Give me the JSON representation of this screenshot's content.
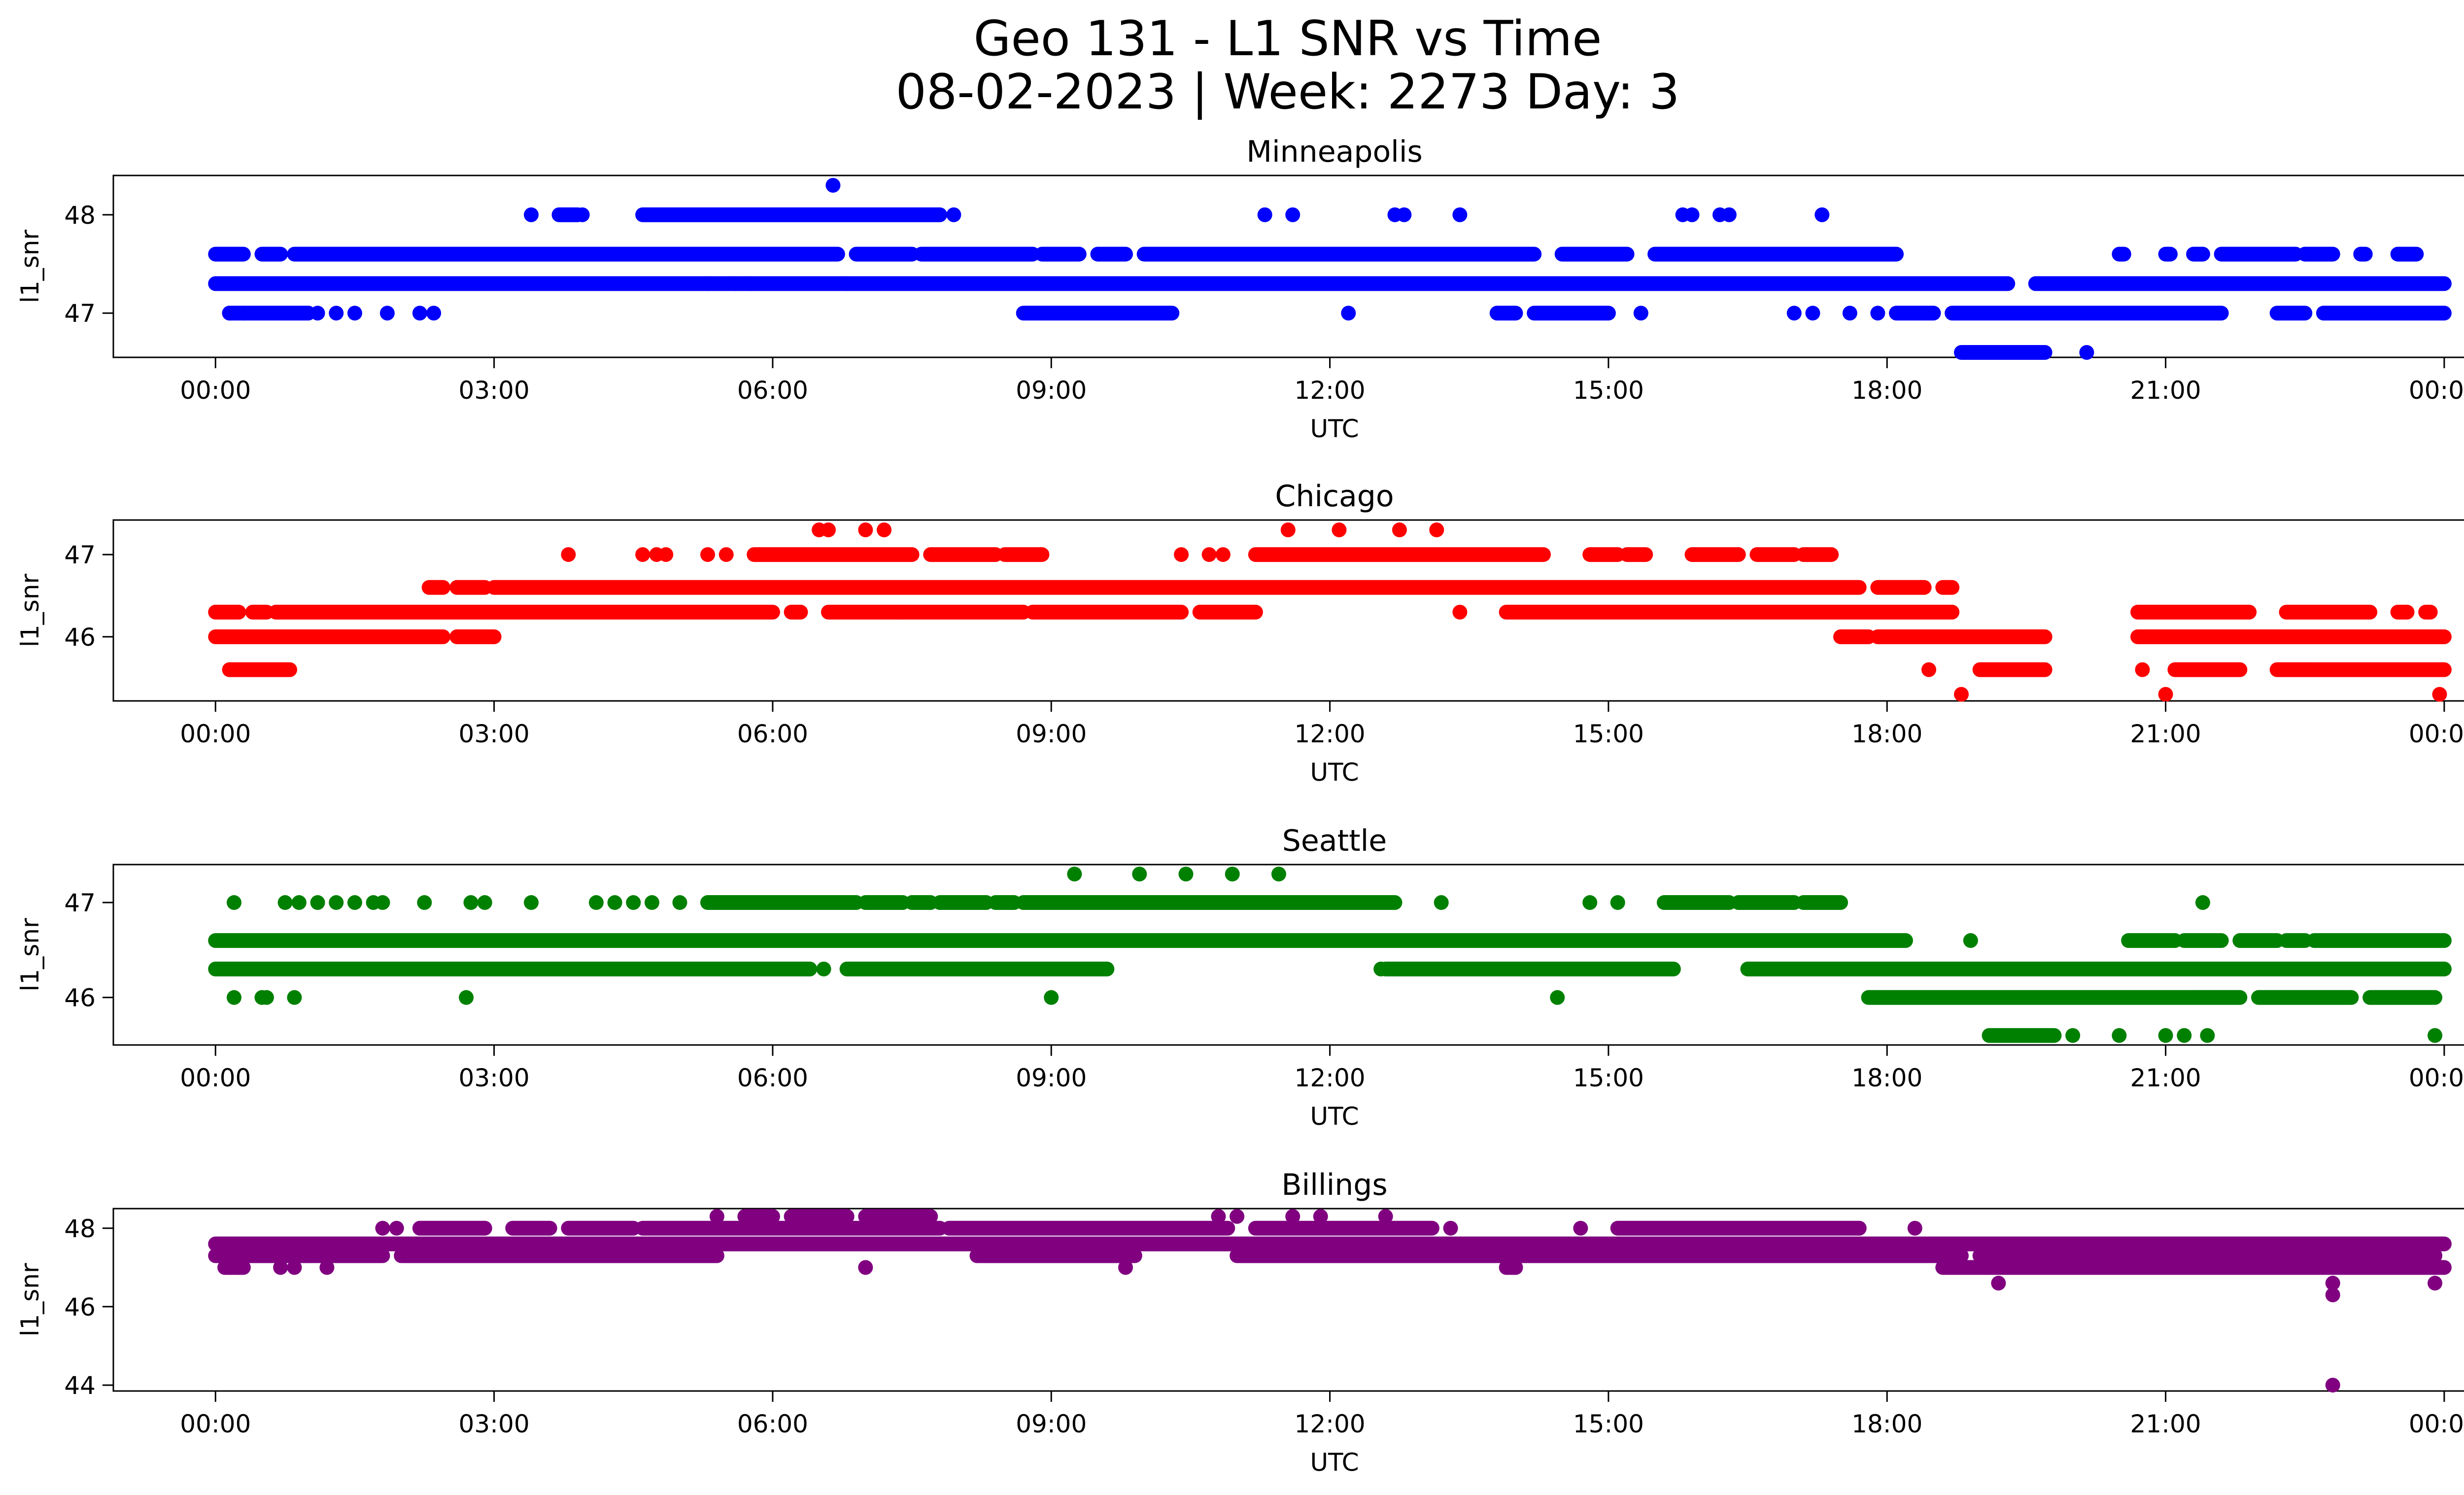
{
  "figure": {
    "title_line1": "Geo 131 - L1 SNR vs Time",
    "title_line2": "08-02-2023 | Week: 2273 Day: 3"
  },
  "chart_data": [
    {
      "type": "scatter",
      "title": "Minneapolis",
      "xlabel": "UTC",
      "ylabel": "l1_snr",
      "color": "#0000ff",
      "x_ticks": [
        "00:00",
        "03:00",
        "06:00",
        "09:00",
        "12:00",
        "15:00",
        "18:00",
        "21:00",
        "00:00"
      ],
      "xlim_hours": [
        -1.1,
        25.2
      ],
      "y_ticks": [
        47,
        48
      ],
      "ylim": [
        46.55,
        48.4
      ],
      "bands": [
        {
          "y": 47.3,
          "ranges": [
            [
              0,
              19.3
            ],
            [
              19.6,
              24
            ]
          ]
        },
        {
          "y": 47.6,
          "ranges": [
            [
              0,
              0.3
            ],
            [
              0.5,
              0.7
            ],
            [
              0.85,
              6.7
            ],
            [
              6.9,
              7.5
            ],
            [
              7.6,
              8.8
            ],
            [
              8.9,
              9.3
            ],
            [
              9.5,
              9.8
            ],
            [
              10.0,
              14.2
            ],
            [
              14.5,
              15.2
            ],
            [
              15.5,
              18.1
            ],
            [
              20.5,
              20.55
            ],
            [
              21.0,
              21.05
            ],
            [
              21.3,
              21.4
            ],
            [
              21.6,
              22.4
            ],
            [
              22.5,
              22.8
            ],
            [
              23.1,
              23.15
            ],
            [
              23.5,
              23.7
            ]
          ]
        },
        {
          "y": 47.0,
          "ranges": [
            [
              0.15,
              1.0
            ],
            [
              8.7,
              10.3
            ],
            [
              13.8,
              14.0
            ],
            [
              14.2,
              15.0
            ],
            [
              18.1,
              18.5
            ],
            [
              18.7,
              21.6
            ],
            [
              22.2,
              22.5
            ],
            [
              22.7,
              24
            ]
          ]
        },
        {
          "y": 48.0,
          "ranges": [
            [
              4.6,
              7.8
            ],
            [
              3.7,
              3.9
            ]
          ]
        },
        {
          "y": 46.6,
          "ranges": [
            [
              18.8,
              19.7
            ]
          ]
        }
      ],
      "points": [
        {
          "x": 0.15,
          "y": 47.0
        },
        {
          "x": 0.3,
          "y": 47.0
        },
        {
          "x": 1.1,
          "y": 47.0
        },
        {
          "x": 1.3,
          "y": 47.0
        },
        {
          "x": 1.5,
          "y": 47.0
        },
        {
          "x": 1.85,
          "y": 47.0
        },
        {
          "x": 2.2,
          "y": 47.0
        },
        {
          "x": 2.35,
          "y": 47.0
        },
        {
          "x": 3.4,
          "y": 48.0
        },
        {
          "x": 3.95,
          "y": 48.0
        },
        {
          "x": 7.95,
          "y": 48.0
        },
        {
          "x": 11.3,
          "y": 48.0
        },
        {
          "x": 11.6,
          "y": 48.0
        },
        {
          "x": 12.7,
          "y": 48.0
        },
        {
          "x": 12.8,
          "y": 48.0
        },
        {
          "x": 13.4,
          "y": 48.0
        },
        {
          "x": 15.8,
          "y": 48.0
        },
        {
          "x": 15.9,
          "y": 48.0
        },
        {
          "x": 16.2,
          "y": 48.0
        },
        {
          "x": 16.3,
          "y": 48.0
        },
        {
          "x": 17.3,
          "y": 48.0
        },
        {
          "x": 6.65,
          "y": 48.3
        },
        {
          "x": 5.3,
          "y": 47.3
        },
        {
          "x": 5.6,
          "y": 47.3
        },
        {
          "x": 5.75,
          "y": 47.3
        },
        {
          "x": 6.8,
          "y": 47.3
        },
        {
          "x": 12.2,
          "y": 47.0
        },
        {
          "x": 15.35,
          "y": 47.0
        },
        {
          "x": 17.0,
          "y": 47.0
        },
        {
          "x": 17.2,
          "y": 47.0
        },
        {
          "x": 17.6,
          "y": 47.0
        },
        {
          "x": 17.9,
          "y": 47.0
        },
        {
          "x": 20.15,
          "y": 46.6
        }
      ]
    },
    {
      "type": "scatter",
      "title": "Chicago",
      "xlabel": "UTC",
      "ylabel": "l1_snr",
      "color": "#ff0000",
      "x_ticks": [
        "00:00",
        "03:00",
        "06:00",
        "09:00",
        "12:00",
        "15:00",
        "18:00",
        "21:00",
        "00:00"
      ],
      "xlim_hours": [
        -1.1,
        25.2
      ],
      "y_ticks": [
        46,
        47
      ],
      "ylim": [
        45.22,
        47.42
      ],
      "bands": [
        {
          "y": 46.3,
          "ranges": [
            [
              0,
              0.25
            ],
            [
              0.4,
              0.55
            ],
            [
              0.65,
              6.0
            ],
            [
              6.2,
              6.3
            ],
            [
              6.6,
              8.7
            ],
            [
              8.8,
              10.4
            ],
            [
              10.6,
              11.2
            ],
            [
              13.9,
              18.7
            ],
            [
              20.7,
              21.9
            ],
            [
              22.3,
              23.2
            ],
            [
              23.5,
              23.6
            ],
            [
              23.8,
              23.85
            ]
          ]
        },
        {
          "y": 46.6,
          "ranges": [
            [
              2.3,
              2.45
            ],
            [
              2.6,
              2.9
            ],
            [
              3.0,
              17.7
            ],
            [
              17.9,
              18.4
            ],
            [
              18.6,
              18.7
            ]
          ]
        },
        {
          "y": 47.0,
          "ranges": [
            [
              5.8,
              7.5
            ],
            [
              7.7,
              8.4
            ],
            [
              8.5,
              8.9
            ],
            [
              11.2,
              14.3
            ],
            [
              14.8,
              15.1
            ],
            [
              15.2,
              15.4
            ],
            [
              15.9,
              16.4
            ],
            [
              16.6,
              17.0
            ],
            [
              17.1,
              17.4
            ]
          ]
        },
        {
          "y": 46.0,
          "ranges": [
            [
              0,
              2.45
            ],
            [
              2.6,
              3.0
            ],
            [
              17.5,
              17.8
            ],
            [
              17.9,
              19.7
            ],
            [
              20.7,
              24
            ]
          ]
        },
        {
          "y": 45.6,
          "ranges": [
            [
              0.15,
              0.8
            ],
            [
              19.0,
              19.7
            ],
            [
              21.1,
              21.8
            ],
            [
              22.2,
              24
            ]
          ]
        }
      ],
      "points": [
        {
          "x": 3.8,
          "y": 47.0
        },
        {
          "x": 4.6,
          "y": 47.0
        },
        {
          "x": 4.75,
          "y": 47.0
        },
        {
          "x": 4.85,
          "y": 47.0
        },
        {
          "x": 5.3,
          "y": 47.0
        },
        {
          "x": 5.5,
          "y": 47.0
        },
        {
          "x": 10.4,
          "y": 47.0
        },
        {
          "x": 10.7,
          "y": 47.0
        },
        {
          "x": 10.85,
          "y": 47.0
        },
        {
          "x": 6.5,
          "y": 47.3
        },
        {
          "x": 6.6,
          "y": 47.3
        },
        {
          "x": 7.0,
          "y": 47.3
        },
        {
          "x": 7.2,
          "y": 47.3
        },
        {
          "x": 11.55,
          "y": 47.3
        },
        {
          "x": 12.1,
          "y": 47.3
        },
        {
          "x": 12.75,
          "y": 47.3
        },
        {
          "x": 13.15,
          "y": 47.3
        },
        {
          "x": 6.25,
          "y": 46.3
        },
        {
          "x": 7.35,
          "y": 46.3
        },
        {
          "x": 13.4,
          "y": 46.3
        },
        {
          "x": 18.45,
          "y": 45.6
        },
        {
          "x": 18.8,
          "y": 45.3
        },
        {
          "x": 20.75,
          "y": 45.6
        },
        {
          "x": 21.0,
          "y": 45.3
        },
        {
          "x": 23.95,
          "y": 45.3
        }
      ]
    },
    {
      "type": "scatter",
      "title": "Seattle",
      "xlabel": "UTC",
      "ylabel": "l1_snr",
      "color": "#008000",
      "x_ticks": [
        "00:00",
        "03:00",
        "06:00",
        "09:00",
        "12:00",
        "15:00",
        "18:00",
        "21:00",
        "00:00"
      ],
      "xlim_hours": [
        -1.1,
        25.2
      ],
      "y_ticks": [
        46,
        47
      ],
      "ylim": [
        45.5,
        47.4
      ],
      "bands": [
        {
          "y": 46.6,
          "ranges": [
            [
              0,
              18.2
            ],
            [
              20.6,
              21.1
            ],
            [
              21.2,
              21.6
            ],
            [
              21.8,
              22.2
            ],
            [
              22.3,
              22.5
            ],
            [
              22.6,
              24
            ]
          ]
        },
        {
          "y": 46.3,
          "ranges": [
            [
              0,
              6.4
            ],
            [
              6.8,
              9.6
            ],
            [
              12.6,
              15.7
            ],
            [
              16.5,
              24
            ]
          ]
        },
        {
          "y": 47.0,
          "ranges": [
            [
              5.3,
              6.9
            ],
            [
              7.0,
              7.4
            ],
            [
              7.5,
              7.7
            ],
            [
              7.8,
              8.3
            ],
            [
              8.4,
              8.6
            ],
            [
              8.7,
              12.7
            ],
            [
              15.6,
              16.3
            ],
            [
              16.4,
              17.0
            ],
            [
              17.1,
              17.5
            ]
          ]
        },
        {
          "y": 46.0,
          "ranges": [
            [
              17.8,
              21.8
            ],
            [
              22.0,
              23.0
            ],
            [
              23.2,
              23.9
            ]
          ]
        },
        {
          "y": 45.6,
          "ranges": [
            [
              19.1,
              19.8
            ]
          ]
        }
      ],
      "points": [
        {
          "x": 0.2,
          "y": 46.0
        },
        {
          "x": 0.5,
          "y": 46.0
        },
        {
          "x": 0.55,
          "y": 46.0
        },
        {
          "x": 0.85,
          "y": 46.0
        },
        {
          "x": 2.7,
          "y": 46.0
        },
        {
          "x": 9.0,
          "y": 46.0
        },
        {
          "x": 14.45,
          "y": 46.0
        },
        {
          "x": 0.2,
          "y": 47.0
        },
        {
          "x": 0.75,
          "y": 47.0
        },
        {
          "x": 0.9,
          "y": 47.0
        },
        {
          "x": 1.1,
          "y": 47.0
        },
        {
          "x": 1.3,
          "y": 47.0
        },
        {
          "x": 1.5,
          "y": 47.0
        },
        {
          "x": 1.7,
          "y": 47.0
        },
        {
          "x": 1.8,
          "y": 47.0
        },
        {
          "x": 2.25,
          "y": 47.0
        },
        {
          "x": 2.75,
          "y": 47.0
        },
        {
          "x": 2.9,
          "y": 47.0
        },
        {
          "x": 3.4,
          "y": 47.0
        },
        {
          "x": 4.1,
          "y": 47.0
        },
        {
          "x": 4.3,
          "y": 47.0
        },
        {
          "x": 4.5,
          "y": 47.0
        },
        {
          "x": 4.7,
          "y": 47.0
        },
        {
          "x": 5.0,
          "y": 47.0
        },
        {
          "x": 13.2,
          "y": 47.0
        },
        {
          "x": 14.8,
          "y": 47.0
        },
        {
          "x": 15.1,
          "y": 47.0
        },
        {
          "x": 9.25,
          "y": 47.3
        },
        {
          "x": 9.95,
          "y": 47.3
        },
        {
          "x": 10.45,
          "y": 47.3
        },
        {
          "x": 10.95,
          "y": 47.3
        },
        {
          "x": 11.45,
          "y": 47.3
        },
        {
          "x": 6.55,
          "y": 46.3
        },
        {
          "x": 12.55,
          "y": 46.3
        },
        {
          "x": 18.9,
          "y": 46.6
        },
        {
          "x": 21.4,
          "y": 47.0
        },
        {
          "x": 20.0,
          "y": 45.6
        },
        {
          "x": 20.5,
          "y": 45.6
        },
        {
          "x": 21.0,
          "y": 45.6
        },
        {
          "x": 21.2,
          "y": 45.6
        },
        {
          "x": 21.45,
          "y": 45.6
        },
        {
          "x": 23.9,
          "y": 45.6
        }
      ]
    },
    {
      "type": "scatter",
      "title": "Billings",
      "xlabel": "UTC",
      "ylabel": "l1_snr",
      "color": "#800080",
      "x_ticks": [
        "00:00",
        "03:00",
        "06:00",
        "09:00",
        "12:00",
        "15:00",
        "18:00",
        "21:00",
        "00:00"
      ],
      "xlim_hours": [
        -1.1,
        25.2
      ],
      "y_ticks": [
        44,
        46,
        48
      ],
      "ylim": [
        43.85,
        48.5
      ],
      "bands": [
        {
          "y": 47.6,
          "ranges": [
            [
              0,
              24
            ]
          ]
        },
        {
          "y": 47.3,
          "ranges": [
            [
              0,
              1.8
            ],
            [
              2.0,
              5.4
            ],
            [
              8.2,
              9.9
            ],
            [
              11.0,
              17.9
            ],
            [
              17.9,
              18.8
            ],
            [
              19.0,
              23.9
            ]
          ]
        },
        {
          "y": 47.0,
          "ranges": [
            [
              0.1,
              0.3
            ],
            [
              13.9,
              14.0
            ],
            [
              18.6,
              24
            ]
          ]
        },
        {
          "y": 48.0,
          "ranges": [
            [
              2.2,
              2.9
            ],
            [
              3.2,
              3.6
            ],
            [
              3.8,
              4.5
            ],
            [
              4.6,
              7.8
            ],
            [
              7.9,
              10.9
            ],
            [
              11.2,
              13.1
            ],
            [
              15.1,
              17.7
            ]
          ]
        },
        {
          "y": 48.3,
          "ranges": [
            [
              5.7,
              6.0
            ],
            [
              6.2,
              6.8
            ],
            [
              7.0,
              7.7
            ]
          ]
        }
      ],
      "points": [
        {
          "x": 0.15,
          "y": 47.0
        },
        {
          "x": 0.25,
          "y": 47.0
        },
        {
          "x": 0.7,
          "y": 47.0
        },
        {
          "x": 0.85,
          "y": 47.0
        },
        {
          "x": 1.2,
          "y": 47.0
        },
        {
          "x": 7.0,
          "y": 47.0
        },
        {
          "x": 9.8,
          "y": 47.0
        },
        {
          "x": 14.0,
          "y": 47.0
        },
        {
          "x": 1.8,
          "y": 48.0
        },
        {
          "x": 1.95,
          "y": 48.0
        },
        {
          "x": 13.3,
          "y": 48.0
        },
        {
          "x": 14.7,
          "y": 48.0
        },
        {
          "x": 17.7,
          "y": 48.0
        },
        {
          "x": 18.3,
          "y": 48.0
        },
        {
          "x": 5.4,
          "y": 48.3
        },
        {
          "x": 10.8,
          "y": 48.3
        },
        {
          "x": 11.0,
          "y": 48.3
        },
        {
          "x": 11.6,
          "y": 48.3
        },
        {
          "x": 11.9,
          "y": 48.3
        },
        {
          "x": 12.6,
          "y": 48.3
        },
        {
          "x": 19.2,
          "y": 46.6
        },
        {
          "x": 22.8,
          "y": 46.6
        },
        {
          "x": 22.8,
          "y": 46.3
        },
        {
          "x": 23.9,
          "y": 46.6
        },
        {
          "x": 22.8,
          "y": 44.0
        }
      ]
    }
  ]
}
